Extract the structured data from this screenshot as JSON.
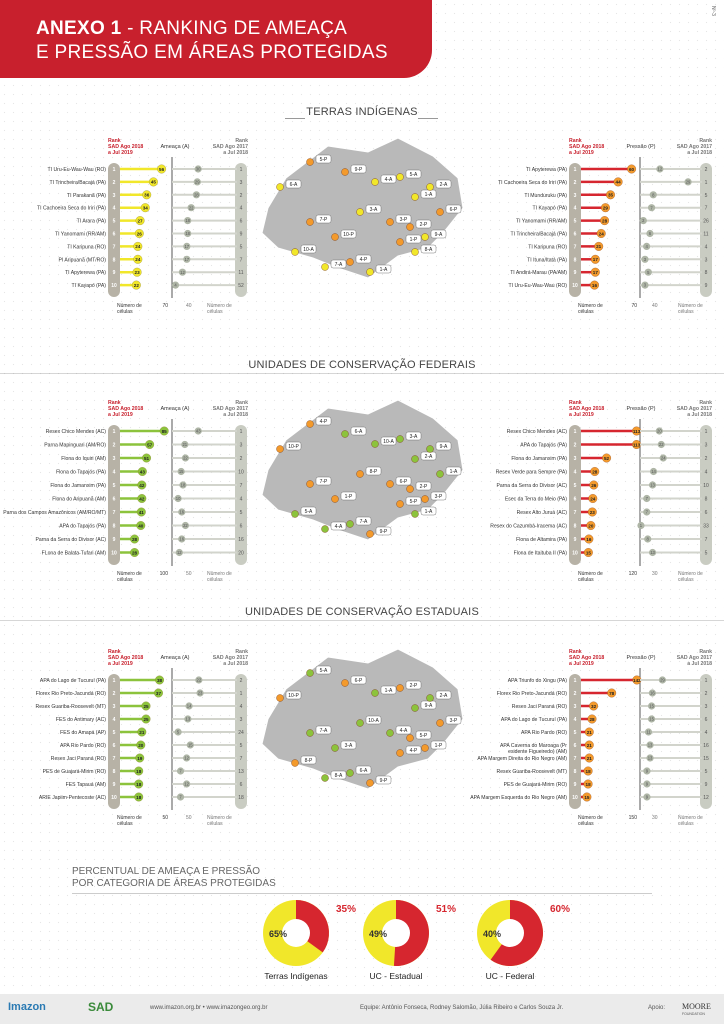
{
  "header": {
    "title_bold": "ANEXO 1",
    "title_rest": " - RANKING DE AMEAÇA",
    "title_line2": "E PRESSÃO EM ÁREAS PROTEGIDAS",
    "side_code": "Nº-3"
  },
  "colors": {
    "brand_red": "#c8202d",
    "threat_yellow": "#f1e72a",
    "threat_green": "#8cc33c",
    "pressure_red": "#d6262f",
    "pressure_orange": "#f39a2c",
    "prev_gray": "#aeb5a6"
  },
  "labels": {
    "rank": "Rank",
    "rank_2019": "SAD Ago 2018",
    "rank_2019b": "a Jul 2019",
    "rank_2018": "SAD Ago 2017",
    "rank_2018b": "a Jul 2018",
    "cells": "Número de",
    "cells2": "células",
    "threat": "Ameaça (A)",
    "pressure": "Pressão (P)"
  },
  "sections": [
    {
      "title": "TERRAS INDÍGENAS",
      "threat": {
        "max": "70",
        "mid": "40",
        "color": "yellow",
        "items": [
          {
            "name": "TI Uru-Eu-Wau-Wau (RO)",
            "v": 56,
            "prev": 30,
            "prank": "1"
          },
          {
            "name": "TI Trincheira/Bacajá (PA)",
            "v": 45,
            "prev": 29,
            "prank": "3"
          },
          {
            "name": "TI Parakanã (PA)",
            "v": 36,
            "prev": 28,
            "prank": "2"
          },
          {
            "name": "TI Cachoeira Seca do Iriri (PA)",
            "v": 34,
            "prev": 22,
            "prank": "4"
          },
          {
            "name": "TI Arara (PA)",
            "v": 27,
            "prev": 18,
            "prank": "6"
          },
          {
            "name": "TI Yanomami (RR/AM)",
            "v": 26,
            "prev": 18,
            "prank": "9"
          },
          {
            "name": "TI Karipuna (RO)",
            "v": 24,
            "prev": 17,
            "prank": "5"
          },
          {
            "name": "PI Aripuanã (MT/RO)",
            "v": 24,
            "prev": 17,
            "prank": "7"
          },
          {
            "name": "TI Apyterewa (PA)",
            "v": 23,
            "prev": 12,
            "prank": "11"
          },
          {
            "name": "TI Kayapó (PA)",
            "v": 22,
            "prev": 4,
            "prank": "52"
          }
        ]
      },
      "pressure": {
        "max": "70",
        "mid": "40",
        "items": [
          {
            "name": "TI Apyterewa (PA)",
            "v": 60,
            "prev": 12,
            "prank": "2"
          },
          {
            "name": "TI Cachoeira Seca do Iriri (PA)",
            "v": 44,
            "prev": 29,
            "prank": "1"
          },
          {
            "name": "TI Munduruku (PA)",
            "v": 35,
            "prev": 8,
            "prank": "5"
          },
          {
            "name": "TI Kayapó (PA)",
            "v": 29,
            "prev": 7,
            "prank": "7"
          },
          {
            "name": "TI Yanomami (RR/AM)",
            "v": 28,
            "prev": 2,
            "prank": "26"
          },
          {
            "name": "TI Trincheira/Bacajá (PA)",
            "v": 24,
            "prev": 6,
            "prank": "11"
          },
          {
            "name": "TI Karipuna (RO)",
            "v": 21,
            "prev": 4,
            "prank": "4"
          },
          {
            "name": "TI Ituna/Itatá (PA)",
            "v": 17,
            "prev": 3,
            "prank": "3"
          },
          {
            "name": "TI Andirá-Marau (PA/AM)",
            "v": 17,
            "prev": 5,
            "prank": "8"
          },
          {
            "name": "TI Uru-Eu-Wau-Wau (RO)",
            "v": 16,
            "prev": 3,
            "prank": "9"
          }
        ]
      },
      "map_labels": [
        "5-P",
        "6-A",
        "9-P",
        "4-A",
        "5-A",
        "1-A",
        "2-A",
        "6-P",
        "3-A",
        "3-P",
        "2-P",
        "9-A",
        "1-P",
        "7-P",
        "10-P",
        "4-P",
        "10-A",
        "7-A",
        "1-A",
        "8-A"
      ]
    },
    {
      "title": "UNIDADES DE CONSERVAÇÃO FEDERAIS",
      "threat": {
        "max": "100",
        "mid": "50",
        "color": "green",
        "items": [
          {
            "name": "Resex Chico Mendes (AC)",
            "v": 85,
            "prev": 43,
            "prank": "1"
          },
          {
            "name": "Parna Mapinguari (AM/RO)",
            "v": 57,
            "prev": 21,
            "prank": "3"
          },
          {
            "name": "Flona do Iquiri (AM)",
            "v": 51,
            "prev": 22,
            "prank": "2"
          },
          {
            "name": "Flona do Tapajós (PA)",
            "v": 43,
            "prev": 15,
            "prank": "10"
          },
          {
            "name": "Flona do Jamanxim (PA)",
            "v": 42,
            "prev": 18,
            "prank": "7"
          },
          {
            "name": "Flona do Aripuanã (AM)",
            "v": 42,
            "prev": 10,
            "prank": "4"
          },
          {
            "name": "Parna dos Campos Amazônicos (AM/RO/MT)",
            "v": 41,
            "prev": 16,
            "prank": "5"
          },
          {
            "name": "APA do Tapajós (PA)",
            "v": 40,
            "prev": 22,
            "prank": "6"
          },
          {
            "name": "Parna da Serra do Divisor (AC)",
            "v": 28,
            "prev": 16,
            "prank": "16"
          },
          {
            "name": "FLona de Balata-Tufari (AM)",
            "v": 28,
            "prev": 12,
            "prank": "20"
          }
        ]
      },
      "pressure": {
        "max": "120",
        "mid": "30",
        "items": [
          {
            "name": "Resex Chico Mendes (AC)",
            "v": 113,
            "prev": 20,
            "prank": "1"
          },
          {
            "name": "APA do Tapajós (PA)",
            "v": 113,
            "prev": 22,
            "prank": "3"
          },
          {
            "name": "Flona do Jamanxim (PA)",
            "v": 52,
            "prev": 24,
            "prank": "2"
          },
          {
            "name": "Resex Verde para Sempre (PA)",
            "v": 28,
            "prev": 14,
            "prank": "4"
          },
          {
            "name": "Parna da Serra do Divisor (AC)",
            "v": 26,
            "prev": 13,
            "prank": "10"
          },
          {
            "name": "Esec da Terra do Meio (PA)",
            "v": 24,
            "prev": 7,
            "prank": "8"
          },
          {
            "name": "Resex Alto Juruá (AC)",
            "v": 23,
            "prev": 7,
            "prank": "6"
          },
          {
            "name": "Resex do Cazumbá-Iracema (AC)",
            "v": 20,
            "prev": 1,
            "prank": "33"
          },
          {
            "name": "Flona de Altamira (PA)",
            "v": 16,
            "prev": 8,
            "prank": "7"
          },
          {
            "name": "Flona de Itaituba II (PA)",
            "v": 15,
            "prev": 13,
            "prank": "5"
          }
        ]
      },
      "map_labels": [
        "4-P",
        "10-P",
        "6-A",
        "10-A",
        "3-A",
        "2-A",
        "9-A",
        "1-A",
        "8-P",
        "6-P",
        "2-P",
        "3-P",
        "5-P",
        "7-P",
        "1-P",
        "7-A",
        "5-A",
        "4-A",
        "9-P",
        "1-A"
      ]
    },
    {
      "title": "UNIDADES DE CONSERVAÇÃO ESTADUAIS",
      "threat": {
        "max": "50",
        "mid": "50",
        "color": "green2",
        "items": [
          {
            "name": "APA do Lago de Tucuruí (PA)",
            "v": 38,
            "prev": 22,
            "prank": "2"
          },
          {
            "name": "Florex Rio Preto-Jacundá (RO)",
            "v": 37,
            "prev": 23,
            "prank": "1"
          },
          {
            "name": "Resex Guariba-Roosevelt (MT)",
            "v": 25,
            "prev": 14,
            "prank": "4"
          },
          {
            "name": "FES do Antimary (AC)",
            "v": 25,
            "prev": 13,
            "prank": "3"
          },
          {
            "name": "FES do Amapá (AP)",
            "v": 21,
            "prev": 5,
            "prank": "24"
          },
          {
            "name": "APA Rio Pardo (RO)",
            "v": 20,
            "prev": 15,
            "prank": "5"
          },
          {
            "name": "Resex Jaci Paraná (RO)",
            "v": 19,
            "prev": 12,
            "prank": "7"
          },
          {
            "name": "PES de Guajará-Mirim (RO)",
            "v": 18,
            "prev": 7,
            "prank": "13"
          },
          {
            "name": "FES Tapauá (AM)",
            "v": 18,
            "prev": 12,
            "prank": "6"
          },
          {
            "name": "ARIE Japiim-Pentecoste (AC)",
            "v": 18,
            "prev": 7,
            "prank": "18"
          }
        ]
      },
      "pressure": {
        "max": "150",
        "mid": "30",
        "items": [
          {
            "name": "APA Triunfo do Xingu (PA)",
            "v": 142,
            "prev": 29,
            "prank": "1"
          },
          {
            "name": "Florex Rio Preto-Jacundá (RO)",
            "v": 78,
            "prev": 16,
            "prank": "2"
          },
          {
            "name": "Resex Jaci Paraná (RO)",
            "v": 32,
            "prev": 15,
            "prank": "3"
          },
          {
            "name": "APA do Lago de Tucuruí (PA)",
            "v": 28,
            "prev": 15,
            "prank": "6"
          },
          {
            "name": "APA Rio Pardo (RO)",
            "v": 21,
            "prev": 11,
            "prank": "4"
          },
          {
            "name": "APA Caverna do Maroaga (Presidente Figueiredo) (AM)",
            "v": 21,
            "prev": 13,
            "prank": "16"
          },
          {
            "name": "APA Margem Direita do Rio Negro (AM)",
            "v": 21,
            "prev": 13,
            "prank": "15"
          },
          {
            "name": "Resex Guariba-Roosevelt (MT)",
            "v": 18,
            "prev": 9,
            "prank": "5"
          },
          {
            "name": "PES de Guajará-Mirim (RO)",
            "v": 18,
            "prev": 9,
            "prank": "9"
          },
          {
            "name": "APA Margem Esquerda do Rio Negro (AM)",
            "v": 15,
            "prev": 9,
            "prank": "12"
          }
        ]
      },
      "map_labels": [
        "5-A",
        "10-P",
        "6-P",
        "1-A",
        "2-P",
        "9-A",
        "2-A",
        "3-P",
        "10-A",
        "4-A",
        "5-P",
        "1-P",
        "4-P",
        "7-A",
        "3-A",
        "6-A",
        "8-P",
        "8-A",
        "9-P"
      ]
    }
  ],
  "percent": {
    "title_line1": "PERCENTUAL DE AMEAÇA E PRESSÃO",
    "title_line2": "POR CATEGORIA DE ÁREAS PROTEGIDAS",
    "pies": [
      {
        "name": "Terras Indígenas",
        "threat": 65,
        "pressure": 35,
        "threat_label": "65%",
        "pressure_label": "35%"
      },
      {
        "name": "UC - Estadual",
        "threat": 49,
        "pressure": 51,
        "threat_label": "49%",
        "pressure_label": "51%"
      },
      {
        "name": "UC - Federal",
        "threat": 40,
        "pressure": 60,
        "threat_label": "40%",
        "pressure_label": "60%"
      }
    ]
  },
  "footer": {
    "imazon": "Imazon",
    "sad": "SAD",
    "urls": "www.imazon.org.br • www.imazongeo.org.br",
    "team": "Equipe: Antônio Fonseca, Rodney Salomão, Júlia Ribeiro e Carlos Souza Jr.",
    "support": "Apoio:",
    "moore": "MOORE",
    "moore_sub": "FOUNDATION"
  },
  "chart_data": [
    {
      "type": "bar",
      "title": "Ameaça (A) - Terras Indígenas",
      "categories": [
        "TI Uru-Eu-Wau-Wau (RO)",
        "TI Trincheira/Bacajá (PA)",
        "TI Parakanã (PA)",
        "TI Cachoeira Seca do Iriri (PA)",
        "TI Arara (PA)",
        "TI Yanomami (RR/AM)",
        "TI Karipuna (RO)",
        "PI Aripuanã (MT/RO)",
        "TI Apyterewa (PA)",
        "TI Kayapó (PA)"
      ],
      "values": [
        56,
        45,
        36,
        34,
        27,
        26,
        24,
        24,
        23,
        22
      ]
    },
    {
      "type": "bar",
      "title": "Pressão (P) - Terras Indígenas",
      "categories": [
        "TI Apyterewa (PA)",
        "TI Cachoeira Seca do Iriri (PA)",
        "TI Munduruku (PA)",
        "TI Kayapó (PA)",
        "TI Yanomami (RR/AM)",
        "TI Trincheira/Bacajá (PA)",
        "TI Karipuna (RO)",
        "TI Ituna/Itatá (PA)",
        "TI Andirá-Marau (PA/AM)",
        "TI Uru-Eu-Wau-Wau (RO)"
      ],
      "values": [
        60,
        44,
        35,
        29,
        28,
        24,
        21,
        17,
        17,
        16
      ]
    },
    {
      "type": "bar",
      "title": "Ameaça (A) - UC Federais",
      "values": [
        85,
        57,
        51,
        43,
        42,
        42,
        41,
        40,
        28,
        28
      ]
    },
    {
      "type": "bar",
      "title": "Pressão (P) - UC Federais",
      "values": [
        113,
        113,
        52,
        28,
        26,
        24,
        23,
        20,
        16,
        15
      ]
    },
    {
      "type": "bar",
      "title": "Ameaça (A) - UC Estaduais",
      "values": [
        38,
        37,
        25,
        25,
        21,
        20,
        19,
        18,
        18,
        18
      ]
    },
    {
      "type": "bar",
      "title": "Pressão (P) - UC Estaduais",
      "values": [
        142,
        78,
        32,
        28,
        21,
        21,
        21,
        18,
        18,
        15
      ]
    },
    {
      "type": "pie",
      "title": "Terras Indígenas",
      "categories": [
        "Ameaça",
        "Pressão"
      ],
      "values": [
        65,
        35
      ]
    },
    {
      "type": "pie",
      "title": "UC - Estadual",
      "categories": [
        "Ameaça",
        "Pressão"
      ],
      "values": [
        49,
        51
      ]
    },
    {
      "type": "pie",
      "title": "UC - Federal",
      "categories": [
        "Ameaça",
        "Pressão"
      ],
      "values": [
        40,
        60
      ]
    }
  ]
}
